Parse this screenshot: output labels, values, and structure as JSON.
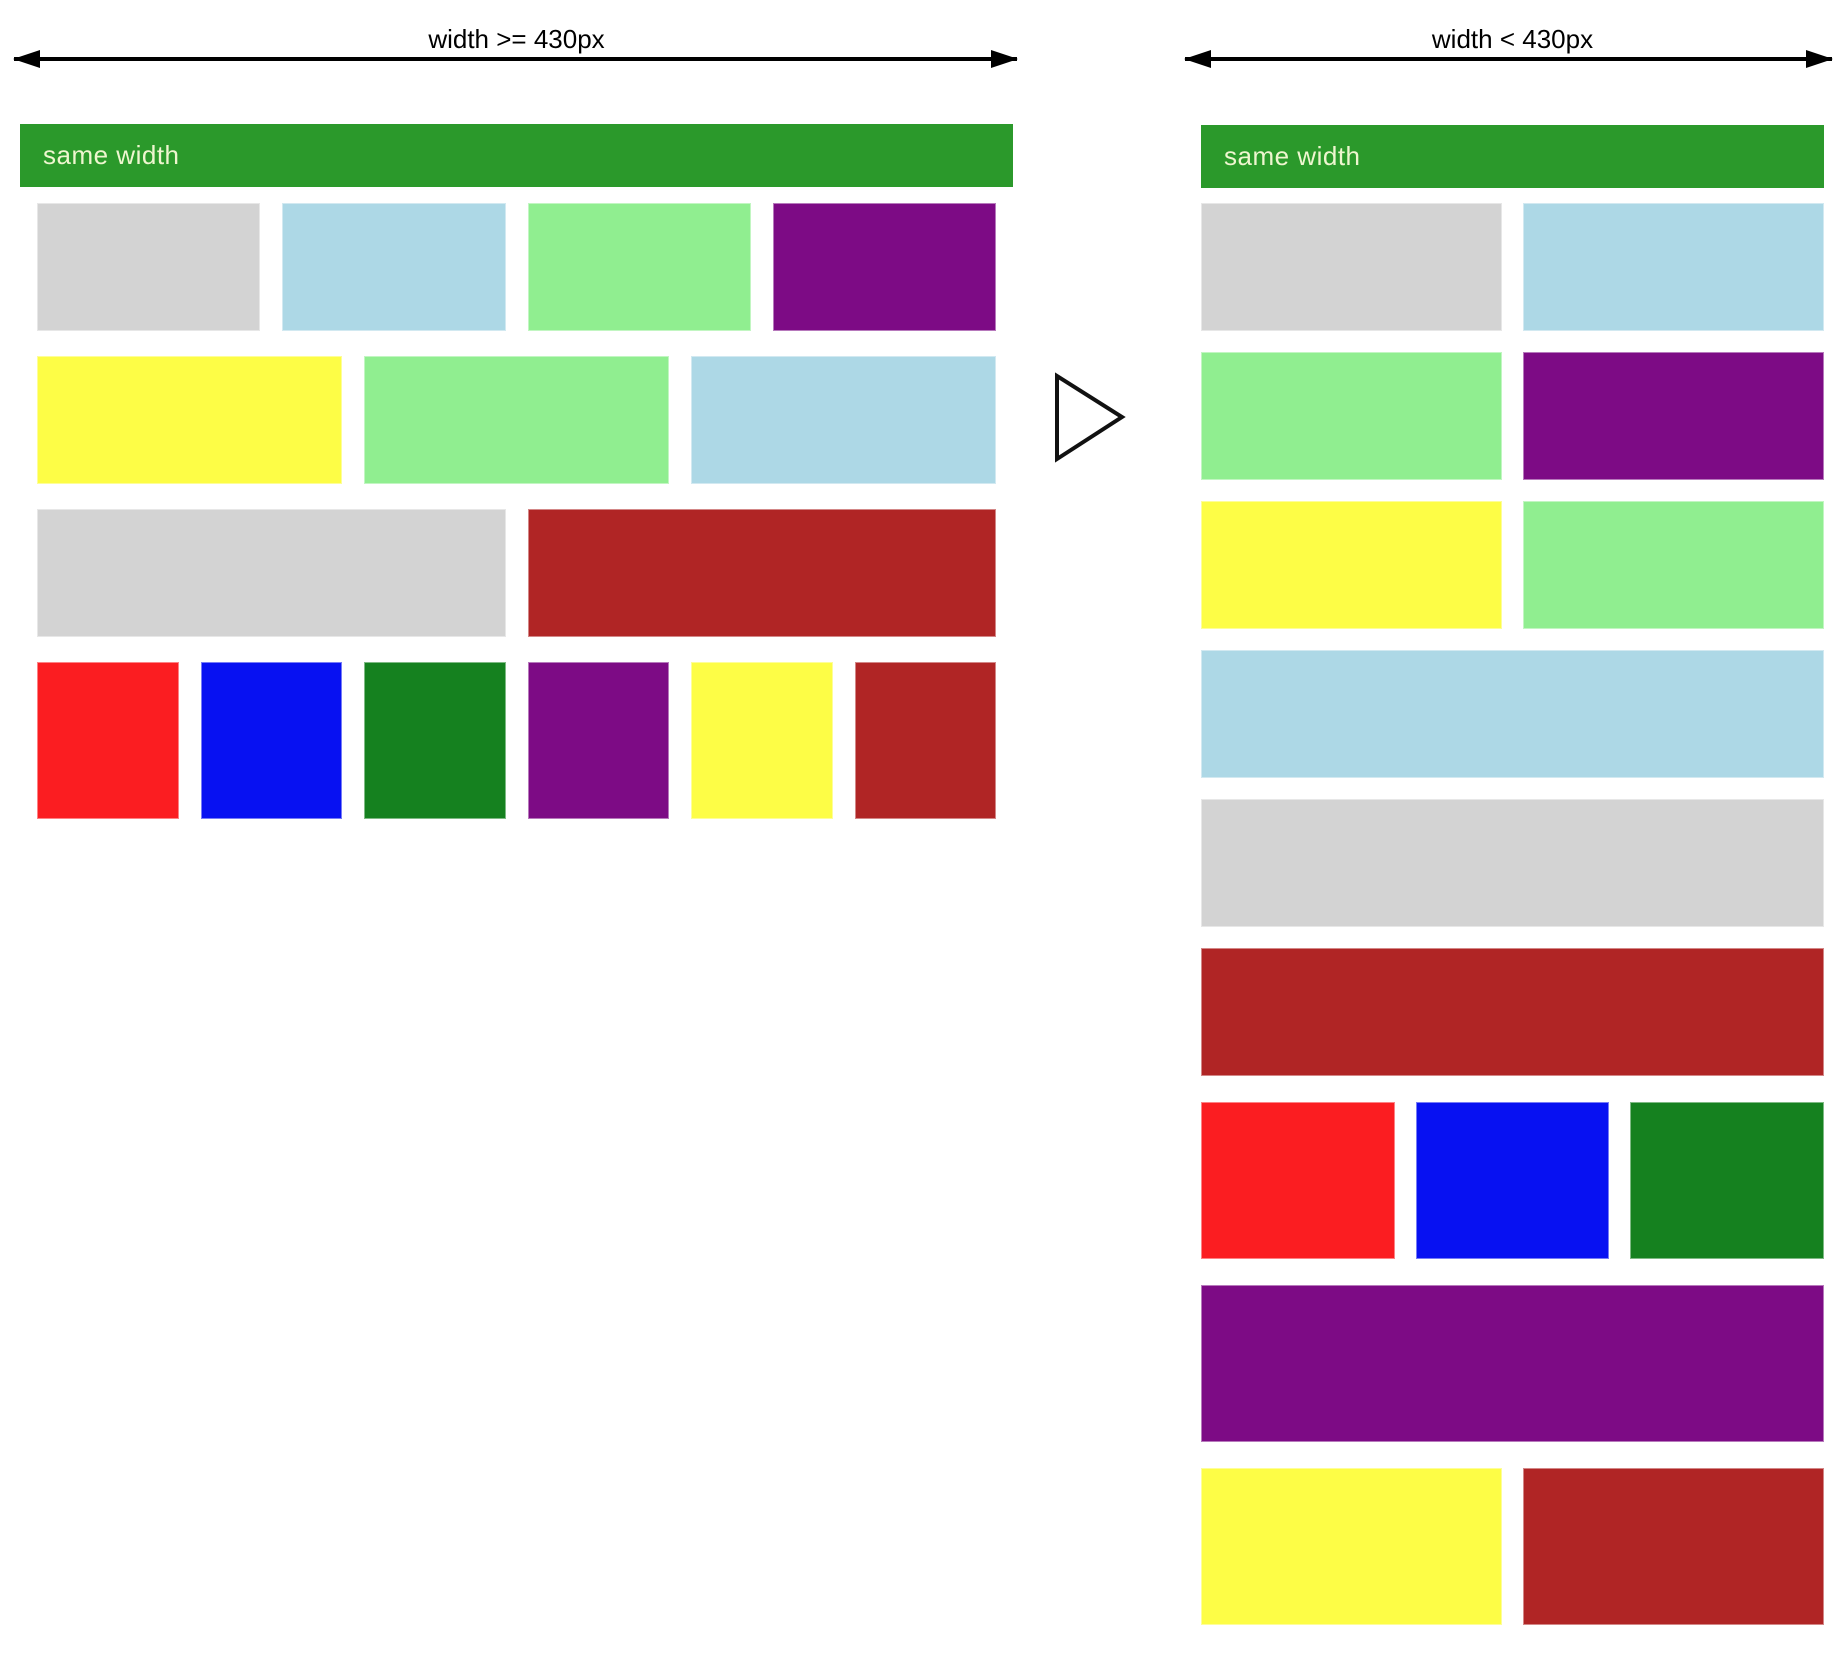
{
  "diagram": {
    "left_panel": {
      "arrow_label": "width >= 430px",
      "header_label": "same width",
      "rows": [
        {
          "tall": false,
          "blocks": [
            "lightgray",
            "lightblue",
            "lightgreen",
            "purple"
          ]
        },
        {
          "tall": false,
          "blocks": [
            "yellow",
            "lightgreen",
            "lightblue"
          ]
        },
        {
          "tall": false,
          "blocks": [
            "lightgray",
            "firebrick"
          ]
        },
        {
          "tall": true,
          "blocks": [
            "red",
            "blue",
            "forestgreen",
            "purple",
            "yellow",
            "firebrick"
          ]
        }
      ]
    },
    "right_panel": {
      "arrow_label": "width < 430px",
      "header_label": "same width",
      "rows": [
        {
          "tall": false,
          "blocks": [
            "lightgray",
            "lightblue"
          ]
        },
        {
          "tall": false,
          "blocks": [
            "lightgreen",
            "purple"
          ]
        },
        {
          "tall": false,
          "blocks": [
            "yellow",
            "lightgreen"
          ]
        },
        {
          "tall": false,
          "blocks": [
            "lightblue"
          ]
        },
        {
          "tall": false,
          "blocks": [
            "lightgray"
          ]
        },
        {
          "tall": false,
          "blocks": [
            "firebrick"
          ]
        },
        {
          "tall": true,
          "blocks": [
            "red",
            "blue",
            "forestgreen"
          ]
        },
        {
          "tall": true,
          "blocks": [
            "purple"
          ]
        },
        {
          "tall": true,
          "blocks": [
            "yellow",
            "firebrick"
          ]
        }
      ]
    },
    "colors": {
      "header_bg": "#2b992b",
      "header_text": "#eef6cf",
      "arrow": "#000000",
      "lightgray": "#d3d3d3",
      "lightblue": "#add8e6",
      "lightgreen": "#90ee90",
      "purple": "#7d0b85",
      "yellow": "#fdfd46",
      "firebrick": "#b02525",
      "red": "#fb1d21",
      "blue": "#0711f2",
      "forestgreen": "#15811f"
    }
  }
}
